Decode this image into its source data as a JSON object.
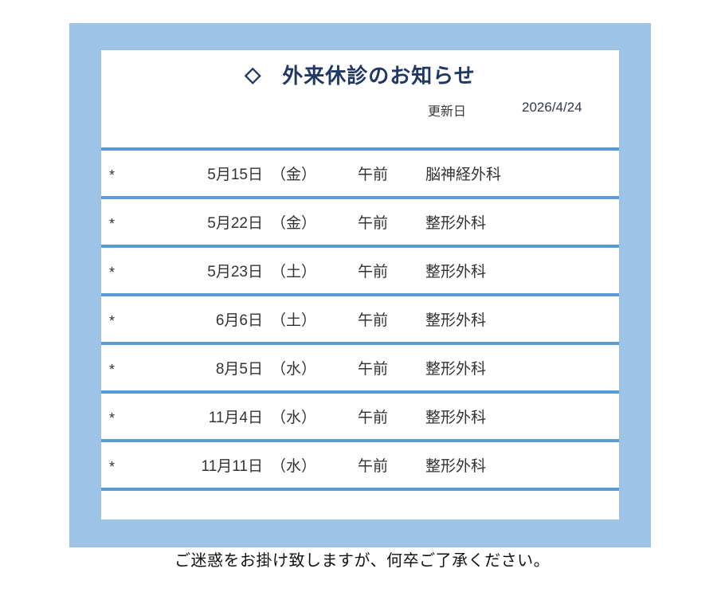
{
  "page": {
    "title_diamond": "◇",
    "title": "外来休診のお知らせ",
    "updated_label": "更新日",
    "updated_date": "2026/4/24",
    "footer_note": "ご迷惑をお掛け致しますが、何卒ご了承ください。"
  },
  "table": {
    "rows": [
      {
        "marker": "*",
        "date": "5月15日",
        "day": "（金）",
        "session": "午前",
        "department": "脳神経外科"
      },
      {
        "marker": "*",
        "date": "5月22日",
        "day": "（金）",
        "session": "午前",
        "department": "整形外科"
      },
      {
        "marker": "*",
        "date": "5月23日",
        "day": "（土）",
        "session": "午前",
        "department": "整形外科"
      },
      {
        "marker": "*",
        "date": "6月6日",
        "day": "（土）",
        "session": "午前",
        "department": "整形外科"
      },
      {
        "marker": "*",
        "date": "8月5日",
        "day": "（水）",
        "session": "午前",
        "department": "整形外科"
      },
      {
        "marker": "*",
        "date": "11月4日",
        "day": "（水）",
        "session": "午前",
        "department": "整形外科"
      },
      {
        "marker": "*",
        "date": "11月11日",
        "day": "（水）",
        "session": "午前",
        "department": "整形外科"
      }
    ]
  },
  "colors": {
    "frame_blue": "#9DC3E6",
    "separator_blue": "#5B9BD5",
    "title_navy": "#1F3864",
    "body_text": "#333333"
  }
}
